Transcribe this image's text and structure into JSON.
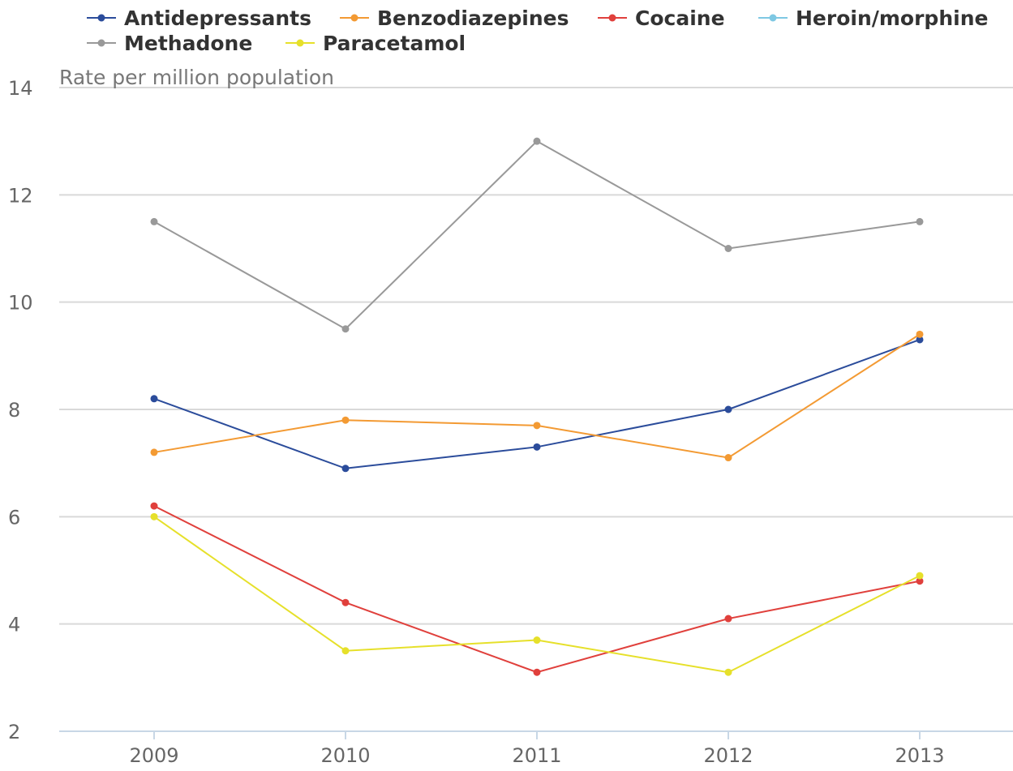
{
  "chart_data": {
    "type": "line",
    "title": "",
    "xlabel": "",
    "ylabel": "Rate per million population",
    "categories": [
      "2009",
      "2010",
      "2011",
      "2012",
      "2013"
    ],
    "ylim": [
      2,
      14
    ],
    "yticks": [
      "2",
      "4",
      "6",
      "8",
      "10",
      "12",
      "14"
    ],
    "grid": true,
    "legend_position": "top-left",
    "series": [
      {
        "name": "Antidepressants",
        "color": "#2b4c9b",
        "values": [
          8.2,
          6.9,
          7.3,
          8.0,
          9.3
        ]
      },
      {
        "name": "Benzodiazepines",
        "color": "#f39a33",
        "values": [
          7.2,
          7.8,
          7.7,
          7.1,
          9.4
        ]
      },
      {
        "name": "Cocaine",
        "color": "#e0403c",
        "values": [
          6.2,
          4.4,
          3.1,
          4.1,
          4.8
        ]
      },
      {
        "name": "Heroin/morphine",
        "color": "#7ec8e3",
        "values": [
          null,
          null,
          null,
          null,
          null
        ]
      },
      {
        "name": "Methadone",
        "color": "#999999",
        "values": [
          11.5,
          9.5,
          13.0,
          11.0,
          11.5
        ]
      },
      {
        "name": "Paracetamol",
        "color": "#e6e02a",
        "values": [
          6.0,
          3.5,
          3.7,
          3.1,
          4.9
        ]
      }
    ]
  }
}
